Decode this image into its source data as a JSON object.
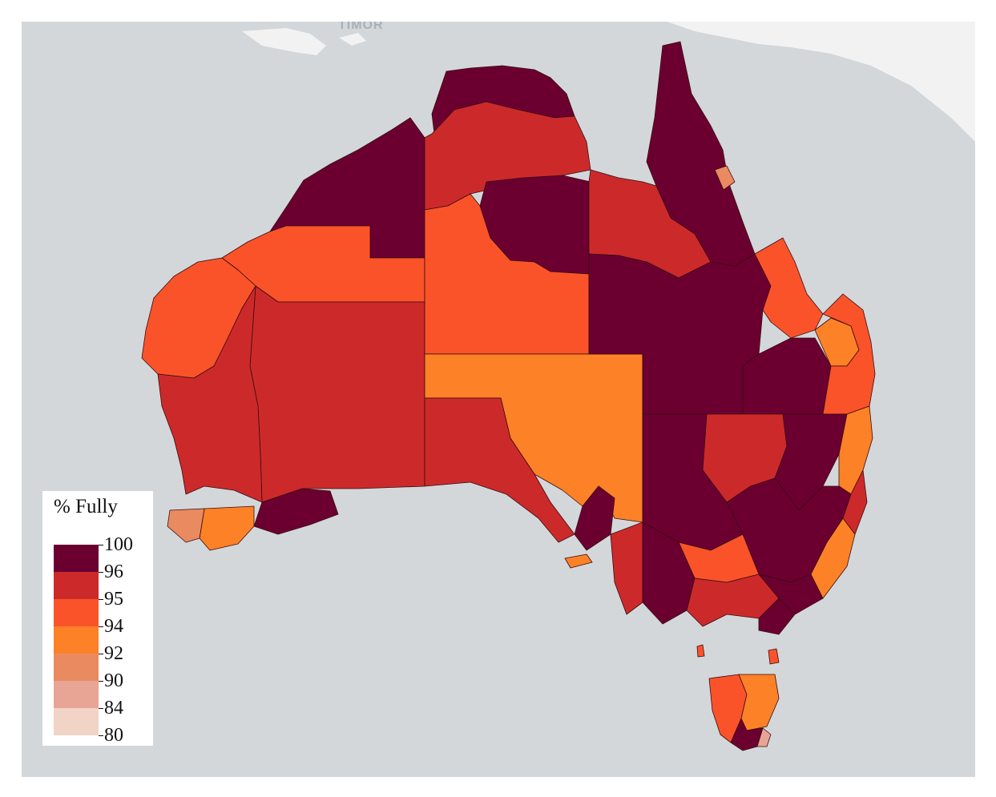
{
  "map": {
    "place_labels": [
      "TIMOR"
    ],
    "palette": {
      "96-100": "#6b0030",
      "95-96": "#cc2a2a",
      "94-95": "#fa532a",
      "92-94": "#fd8127",
      "90-92": "#ea8a60",
      "84-90": "#e8a595",
      "80-84": "#f1d4c6",
      "water": "#d3d7da",
      "other_land": "#f2f2f2"
    }
  },
  "legend": {
    "title": "% Fully",
    "ticks": [
      "100",
      "96",
      "95",
      "94",
      "92",
      "90",
      "84",
      "80"
    ],
    "bins": [
      {
        "range": "96-100",
        "color": "#6b0030"
      },
      {
        "range": "95-96",
        "color": "#cc2a2a"
      },
      {
        "range": "94-95",
        "color": "#fa532a"
      },
      {
        "range": "92-94",
        "color": "#fd8127"
      },
      {
        "range": "90-92",
        "color": "#ea8a60"
      },
      {
        "range": "84-90",
        "color": "#e8a595"
      },
      {
        "range": "80-84",
        "color": "#f1d4c6"
      }
    ]
  }
}
